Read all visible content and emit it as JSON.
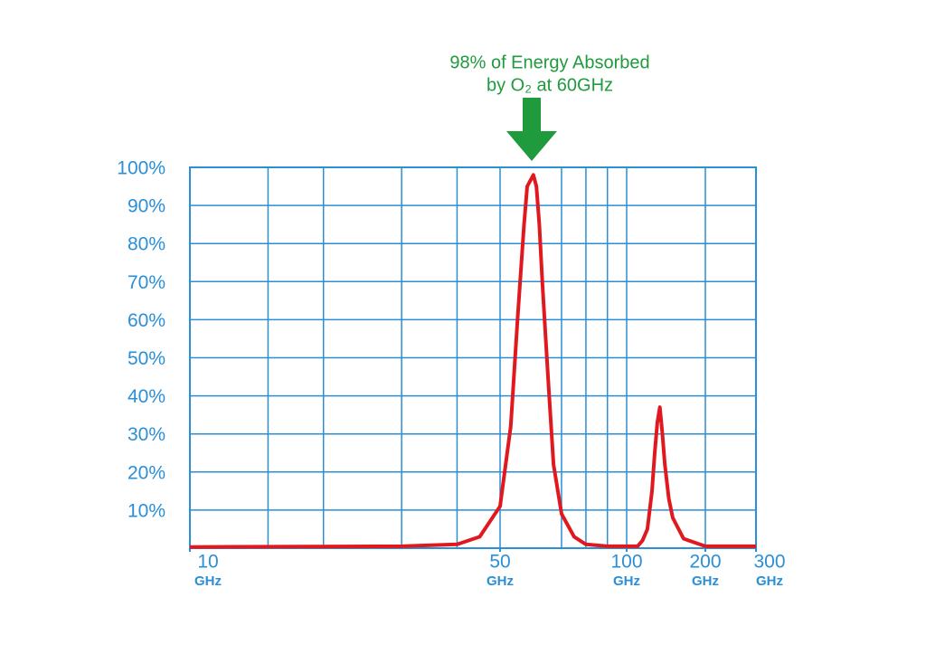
{
  "chart_data": {
    "type": "line",
    "annotation": [
      "98% of Energy Absorbed",
      "by O₂ at 60GHz"
    ],
    "annotation_color": "#1f9a3c",
    "x_scale": "log",
    "x_unit": "GHz",
    "x": [
      10,
      30,
      40,
      45,
      50,
      53,
      55,
      57,
      58,
      60,
      61,
      62,
      63,
      65,
      67,
      70,
      75,
      80,
      90,
      100,
      110,
      115,
      120,
      125,
      128,
      131,
      134,
      137,
      140,
      145,
      150,
      165,
      200,
      300
    ],
    "series": [
      {
        "color": "#e0191f",
        "values": [
          0.3,
          0.5,
          1,
          3,
          11,
          32,
          60,
          85,
          95,
          98,
          95,
          85,
          70,
          45,
          22,
          9,
          3,
          1,
          0.5,
          0.5,
          0.5,
          2,
          5,
          15,
          25,
          33,
          37,
          30,
          22,
          13,
          8,
          2.5,
          0.5,
          0.5
        ]
      }
    ],
    "xlim": [
      10,
      300
    ],
    "xticks": [
      10,
      50,
      100,
      200,
      300
    ],
    "xgrid": [
      15,
      20,
      30,
      40,
      50,
      70,
      80,
      90,
      100,
      200
    ],
    "ylim": [
      0,
      100
    ],
    "yticks": [
      {
        "value": 10,
        "label": "10%"
      },
      {
        "value": 20,
        "label": "20%"
      },
      {
        "value": 30,
        "label": "30%"
      },
      {
        "value": 40,
        "label": "40%"
      },
      {
        "value": 50,
        "label": "50%"
      },
      {
        "value": 60,
        "label": "60%"
      },
      {
        "value": 70,
        "label": "70%"
      },
      {
        "value": 80,
        "label": "80%"
      },
      {
        "value": 90,
        "label": "90%"
      },
      {
        "value": 100,
        "label": "100%"
      }
    ],
    "axis_color": "#2a8fd6",
    "grid": true
  }
}
